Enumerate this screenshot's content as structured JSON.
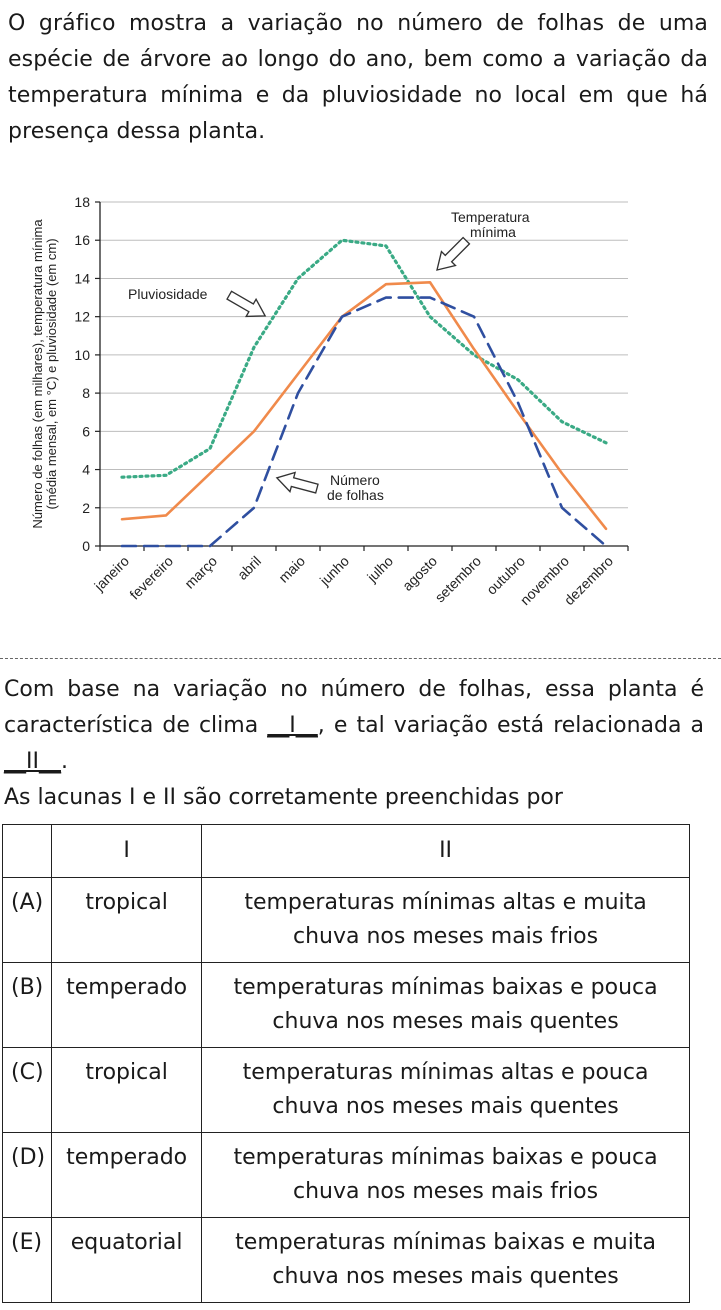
{
  "intro": {
    "text": "O gráfico mostra a variação no número de folhas de uma espécie de árvore ao longo do ano, bem como a variação da temperatura mínima e da pluviosidade no local em que há presença dessa planta."
  },
  "chart_data": {
    "type": "line",
    "title": "",
    "ylabel_line1": "Número de folhas (em milhares), temperatura mínima",
    "ylabel_line2": "(média mensal, em °C) e pluviosidade (em cm)",
    "xlabel": "",
    "ylim": [
      0,
      18
    ],
    "yticks": [
      "0",
      "2",
      "4",
      "6",
      "8",
      "10",
      "12",
      "14",
      "16",
      "18"
    ],
    "grid": "horizontal",
    "categories": [
      "janeiro",
      "fevereiro",
      "março",
      "abril",
      "maio",
      "junho",
      "julho",
      "agosto",
      "setembro",
      "outubro",
      "novembro",
      "dezembro"
    ],
    "series": [
      {
        "key": "pluviosidade",
        "label": "Pluviosidade",
        "style": "dotted",
        "color": "#3aaa85",
        "values": [
          3.6,
          3.7,
          5.1,
          10.4,
          14,
          16,
          15.7,
          12,
          10,
          8.7,
          6.5,
          5.4
        ]
      },
      {
        "key": "temperatura",
        "label_line1": "Temperatura",
        "label_line2": "mínima",
        "style": "solid",
        "color": "#f08a4b",
        "values": [
          1.4,
          1.6,
          3.8,
          6,
          9,
          12,
          13.7,
          13.8,
          10.3,
          7,
          3.8,
          0.9
        ]
      },
      {
        "key": "folhas",
        "label_line1": "Número",
        "label_line2": "de folhas",
        "style": "dashed",
        "color": "#2f4fa0",
        "values": [
          0,
          0,
          0,
          2,
          8,
          12,
          13,
          13,
          12,
          7.5,
          2,
          0
        ]
      }
    ]
  },
  "question": {
    "line1": "Com base na variação no número de folhas, essa planta é característica de clima ",
    "blank1": "__I__",
    "line1_end": ", e tal variação está relacionada a ",
    "blank2": "__II__",
    "line2_end": ".",
    "prompt": "As lacunas I e II são corretamente preenchidas por"
  },
  "table": {
    "headers": [
      "",
      "I",
      "II"
    ],
    "rows": [
      {
        "letter": "(A)",
        "col1": "tropical",
        "col2_line1": "temperaturas mínimas altas e muita",
        "col2_line2": "chuva nos meses mais frios"
      },
      {
        "letter": "(B)",
        "col1": "temperado",
        "col2_line1": "temperaturas mínimas baixas e pouca",
        "col2_line2": "chuva nos meses mais quentes"
      },
      {
        "letter": "(C)",
        "col1": "tropical",
        "col2_line1": "temperaturas mínimas altas e pouca",
        "col2_line2": "chuva nos meses mais quentes"
      },
      {
        "letter": "(D)",
        "col1": "temperado",
        "col2_line1": "temperaturas mínimas baixas e pouca",
        "col2_line2": "chuva nos meses mais frios"
      },
      {
        "letter": "(E)",
        "col1": "equatorial",
        "col2_line1": "temperaturas mínimas baixas e muita",
        "col2_line2": "chuva nos meses mais quentes"
      }
    ]
  }
}
